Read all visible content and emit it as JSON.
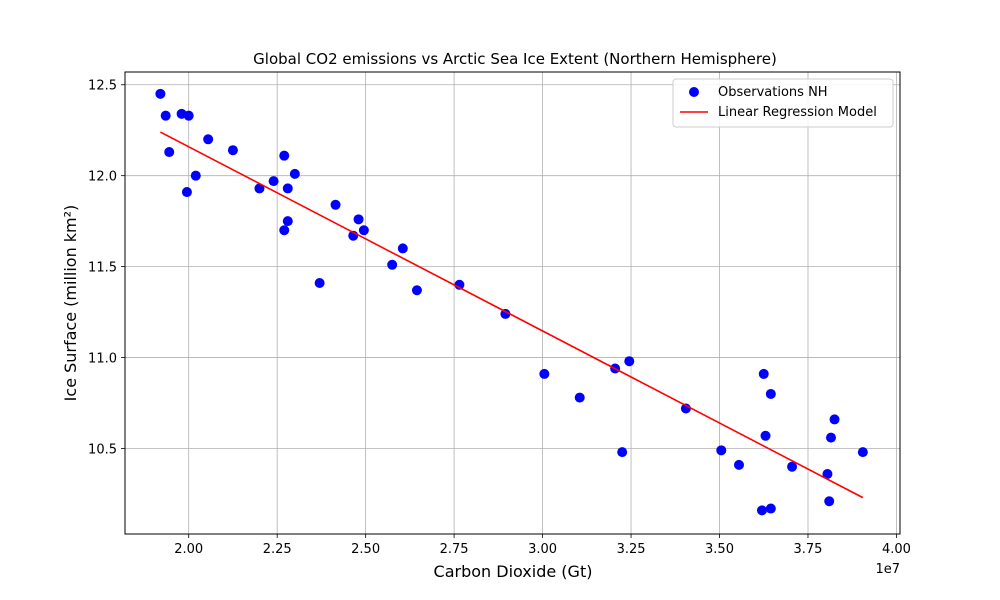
{
  "chart_data": {
    "type": "scatter",
    "title": "Global CO2 emissions vs Arctic Sea Ice Extent (Northern Hemisphere)",
    "xlabel": "Carbon Dioxide (Gt)",
    "ylabel": "Ice Surface (million km²)",
    "x_offset_label": "1e7",
    "xlim": [
      18200000,
      40100000
    ],
    "ylim": [
      10.03,
      12.57
    ],
    "xticks": [
      20000000,
      22500000,
      25000000,
      27500000,
      30000000,
      32500000,
      35000000,
      37500000,
      40000000
    ],
    "xtick_labels": [
      "2.00",
      "2.25",
      "2.50",
      "2.75",
      "3.00",
      "3.25",
      "3.50",
      "3.75",
      "4.00"
    ],
    "yticks": [
      10.5,
      11.0,
      11.5,
      12.0,
      12.5
    ],
    "ytick_labels": [
      "10.5",
      "11.0",
      "11.5",
      "12.0",
      "12.5"
    ],
    "grid": true,
    "legend_position": "top-right",
    "series": [
      {
        "name": "Observations NH",
        "kind": "scatter",
        "color": "#0000ff",
        "points": [
          [
            19200000,
            12.45
          ],
          [
            19350000,
            12.33
          ],
          [
            19450000,
            12.13
          ],
          [
            19800000,
            12.34
          ],
          [
            20000000,
            12.33
          ],
          [
            19950000,
            11.91
          ],
          [
            20200000,
            12.0
          ],
          [
            20550000,
            12.2
          ],
          [
            21250000,
            12.14
          ],
          [
            22000000,
            11.93
          ],
          [
            22400000,
            11.97
          ],
          [
            22700000,
            12.11
          ],
          [
            22800000,
            11.93
          ],
          [
            23000000,
            12.01
          ],
          [
            22700000,
            11.7
          ],
          [
            22800000,
            11.75
          ],
          [
            23700000,
            11.41
          ],
          [
            24150000,
            11.84
          ],
          [
            24650000,
            11.67
          ],
          [
            24800000,
            11.76
          ],
          [
            24950000,
            11.7
          ],
          [
            25750000,
            11.51
          ],
          [
            26050000,
            11.6
          ],
          [
            26450000,
            11.37
          ],
          [
            27650000,
            11.4
          ],
          [
            28950000,
            11.24
          ],
          [
            30050000,
            10.91
          ],
          [
            31050000,
            10.78
          ],
          [
            32050000,
            10.94
          ],
          [
            32450000,
            10.98
          ],
          [
            32250000,
            10.48
          ],
          [
            34050000,
            10.72
          ],
          [
            35050000,
            10.49
          ],
          [
            35550000,
            10.41
          ],
          [
            36250000,
            10.91
          ],
          [
            36450000,
            10.8
          ],
          [
            36300000,
            10.57
          ],
          [
            36200000,
            10.16
          ],
          [
            36450000,
            10.17
          ],
          [
            37050000,
            10.4
          ],
          [
            38050000,
            10.36
          ],
          [
            38150000,
            10.56
          ],
          [
            38250000,
            10.66
          ],
          [
            38100000,
            10.21
          ],
          [
            39050000,
            10.48
          ]
        ]
      },
      {
        "name": "Linear Regression Model",
        "kind": "line",
        "color": "#ff0000",
        "points": [
          [
            19200000,
            12.24
          ],
          [
            39050000,
            10.23
          ]
        ]
      }
    ]
  }
}
